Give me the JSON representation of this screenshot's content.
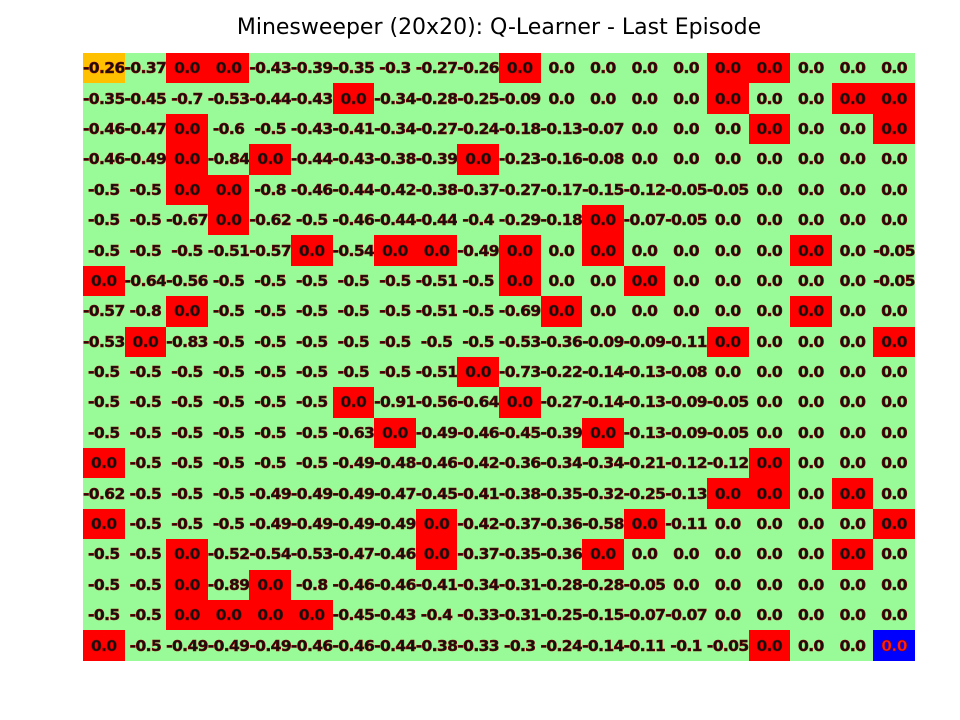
{
  "title": "Minesweeper (20x20): Q-Learner - Last Episode",
  "colors": {
    "safe": "#98fb98",
    "mine": "#ff0000",
    "start": "#ffc000",
    "goal": "#0000ff"
  },
  "legend_note": "",
  "grid": [
    [
      "-0.26",
      "-0.37",
      "0.0",
      "0.0",
      "-0.43",
      "-0.39",
      "-0.35",
      "-0.3",
      "-0.27",
      "-0.26",
      "0.0",
      "0.0",
      "0.0",
      "0.0",
      "0.0",
      "0.0",
      "0.0",
      "0.0",
      "0.0",
      "0.0"
    ],
    [
      "-0.35",
      "-0.45",
      "-0.7",
      "-0.53",
      "-0.44",
      "-0.43",
      "0.0",
      "-0.34",
      "-0.28",
      "-0.25",
      "-0.09",
      "0.0",
      "0.0",
      "0.0",
      "0.0",
      "0.0",
      "0.0",
      "0.0",
      "0.0",
      "0.0"
    ],
    [
      "-0.46",
      "-0.47",
      "0.0",
      "-0.6",
      "-0.5",
      "-0.43",
      "-0.41",
      "-0.34",
      "-0.27",
      "-0.24",
      "-0.18",
      "-0.13",
      "-0.07",
      "0.0",
      "0.0",
      "0.0",
      "0.0",
      "0.0",
      "0.0",
      "0.0"
    ],
    [
      "-0.46",
      "-0.49",
      "0.0",
      "-0.84",
      "0.0",
      "-0.44",
      "-0.43",
      "-0.38",
      "-0.39",
      "0.0",
      "-0.23",
      "-0.16",
      "-0.08",
      "0.0",
      "0.0",
      "0.0",
      "0.0",
      "0.0",
      "0.0",
      "0.0"
    ],
    [
      "-0.5",
      "-0.5",
      "0.0",
      "0.0",
      "-0.8",
      "-0.46",
      "-0.44",
      "-0.42",
      "-0.38",
      "-0.37",
      "-0.27",
      "-0.17",
      "-0.15",
      "-0.12",
      "-0.05",
      "-0.05",
      "0.0",
      "0.0",
      "0.0",
      "0.0"
    ],
    [
      "-0.5",
      "-0.5",
      "-0.67",
      "0.0",
      "-0.62",
      "-0.5",
      "-0.46",
      "-0.44",
      "-0.44",
      "-0.4",
      "-0.29",
      "-0.18",
      "0.0",
      "-0.07",
      "-0.05",
      "0.0",
      "0.0",
      "0.0",
      "0.0",
      "0.0"
    ],
    [
      "-0.5",
      "-0.5",
      "-0.5",
      "-0.51",
      "-0.57",
      "0.0",
      "-0.54",
      "0.0",
      "0.0",
      "-0.49",
      "0.0",
      "0.0",
      "0.0",
      "0.0",
      "0.0",
      "0.0",
      "0.0",
      "0.0",
      "0.0",
      "-0.05"
    ],
    [
      "0.0",
      "-0.64",
      "-0.56",
      "-0.5",
      "-0.5",
      "-0.5",
      "-0.5",
      "-0.5",
      "-0.51",
      "-0.5",
      "0.0",
      "0.0",
      "0.0",
      "0.0",
      "0.0",
      "0.0",
      "0.0",
      "0.0",
      "0.0",
      "-0.05"
    ],
    [
      "-0.57",
      "-0.8",
      "0.0",
      "-0.5",
      "-0.5",
      "-0.5",
      "-0.5",
      "-0.5",
      "-0.51",
      "-0.5",
      "-0.69",
      "0.0",
      "0.0",
      "0.0",
      "0.0",
      "0.0",
      "0.0",
      "0.0",
      "0.0",
      "0.0"
    ],
    [
      "-0.53",
      "0.0",
      "-0.83",
      "-0.5",
      "-0.5",
      "-0.5",
      "-0.5",
      "-0.5",
      "-0.5",
      "-0.5",
      "-0.53",
      "-0.36",
      "-0.09",
      "-0.09",
      "-0.11",
      "0.0",
      "0.0",
      "0.0",
      "0.0",
      "0.0"
    ],
    [
      "-0.5",
      "-0.5",
      "-0.5",
      "-0.5",
      "-0.5",
      "-0.5",
      "-0.5",
      "-0.5",
      "-0.51",
      "0.0",
      "-0.73",
      "-0.22",
      "-0.14",
      "-0.13",
      "-0.08",
      "0.0",
      "0.0",
      "0.0",
      "0.0",
      "0.0"
    ],
    [
      "-0.5",
      "-0.5",
      "-0.5",
      "-0.5",
      "-0.5",
      "-0.5",
      "0.0",
      "-0.91",
      "-0.56",
      "-0.64",
      "0.0",
      "-0.27",
      "-0.14",
      "-0.13",
      "-0.09",
      "-0.05",
      "0.0",
      "0.0",
      "0.0",
      "0.0"
    ],
    [
      "-0.5",
      "-0.5",
      "-0.5",
      "-0.5",
      "-0.5",
      "-0.5",
      "-0.63",
      "0.0",
      "-0.49",
      "-0.46",
      "-0.45",
      "-0.39",
      "0.0",
      "-0.13",
      "-0.09",
      "-0.05",
      "0.0",
      "0.0",
      "0.0",
      "0.0"
    ],
    [
      "0.0",
      "-0.5",
      "-0.5",
      "-0.5",
      "-0.5",
      "-0.5",
      "-0.49",
      "-0.48",
      "-0.46",
      "-0.42",
      "-0.36",
      "-0.34",
      "-0.34",
      "-0.21",
      "-0.12",
      "-0.12",
      "0.0",
      "0.0",
      "0.0",
      "0.0"
    ],
    [
      "-0.62",
      "-0.5",
      "-0.5",
      "-0.5",
      "-0.49",
      "-0.49",
      "-0.49",
      "-0.47",
      "-0.45",
      "-0.41",
      "-0.38",
      "-0.35",
      "-0.32",
      "-0.25",
      "-0.13",
      "0.0",
      "0.0",
      "0.0",
      "0.0",
      "0.0"
    ],
    [
      "0.0",
      "-0.5",
      "-0.5",
      "-0.5",
      "-0.49",
      "-0.49",
      "-0.49",
      "-0.49",
      "0.0",
      "-0.42",
      "-0.37",
      "-0.36",
      "-0.58",
      "0.0",
      "-0.11",
      "0.0",
      "0.0",
      "0.0",
      "0.0",
      "0.0"
    ],
    [
      "-0.5",
      "-0.5",
      "0.0",
      "-0.52",
      "-0.54",
      "-0.53",
      "-0.47",
      "-0.46",
      "0.0",
      "-0.37",
      "-0.35",
      "-0.36",
      "0.0",
      "0.0",
      "0.0",
      "0.0",
      "0.0",
      "0.0",
      "0.0",
      "0.0"
    ],
    [
      "-0.5",
      "-0.5",
      "0.0",
      "-0.89",
      "0.0",
      "-0.8",
      "-0.46",
      "-0.46",
      "-0.41",
      "-0.34",
      "-0.31",
      "-0.28",
      "-0.28",
      "-0.05",
      "0.0",
      "0.0",
      "0.0",
      "0.0",
      "0.0",
      "0.0"
    ],
    [
      "-0.5",
      "-0.5",
      "0.0",
      "0.0",
      "0.0",
      "0.0",
      "-0.45",
      "-0.43",
      "-0.4",
      "-0.33",
      "-0.31",
      "-0.25",
      "-0.15",
      "-0.07",
      "-0.07",
      "0.0",
      "0.0",
      "0.0",
      "0.0",
      "0.0"
    ],
    [
      "0.0",
      "-0.5",
      "-0.49",
      "-0.49",
      "-0.49",
      "-0.46",
      "-0.46",
      "-0.44",
      "-0.38",
      "-0.33",
      "-0.3",
      "-0.24",
      "-0.14",
      "-0.11",
      "-0.1",
      "-0.05",
      "0.0",
      "0.0",
      "0.0",
      "0.0"
    ]
  ],
  "mines": [
    [
      0,
      2
    ],
    [
      0,
      3
    ],
    [
      0,
      10
    ],
    [
      0,
      15
    ],
    [
      0,
      16
    ],
    [
      1,
      6
    ],
    [
      1,
      15
    ],
    [
      1,
      19
    ],
    [
      1,
      18
    ],
    [
      2,
      2
    ],
    [
      2,
      16
    ],
    [
      2,
      19
    ],
    [
      3,
      2
    ],
    [
      3,
      4
    ],
    [
      3,
      9
    ],
    [
      4,
      2
    ],
    [
      4,
      3
    ],
    [
      5,
      3
    ],
    [
      5,
      12
    ],
    [
      6,
      5
    ],
    [
      6,
      7
    ],
    [
      6,
      8
    ],
    [
      6,
      10
    ],
    [
      6,
      12
    ],
    [
      6,
      17
    ],
    [
      7,
      0
    ],
    [
      7,
      10
    ],
    [
      7,
      13
    ],
    [
      8,
      2
    ],
    [
      8,
      11
    ],
    [
      8,
      17
    ],
    [
      9,
      1
    ],
    [
      9,
      15
    ],
    [
      9,
      19
    ],
    [
      10,
      9
    ],
    [
      11,
      6
    ],
    [
      11,
      10
    ],
    [
      12,
      7
    ],
    [
      12,
      12
    ],
    [
      13,
      0
    ],
    [
      13,
      16
    ],
    [
      14,
      15
    ],
    [
      14,
      16
    ],
    [
      14,
      18
    ],
    [
      15,
      0
    ],
    [
      15,
      8
    ],
    [
      15,
      13
    ],
    [
      15,
      19
    ],
    [
      16,
      2
    ],
    [
      16,
      8
    ],
    [
      16,
      12
    ],
    [
      16,
      18
    ],
    [
      17,
      2
    ],
    [
      17,
      4
    ],
    [
      18,
      2
    ],
    [
      18,
      3
    ],
    [
      18,
      4
    ],
    [
      18,
      5
    ],
    [
      19,
      0
    ],
    [
      19,
      16
    ]
  ],
  "start": [
    0,
    0
  ],
  "goal": [
    19,
    19
  ]
}
